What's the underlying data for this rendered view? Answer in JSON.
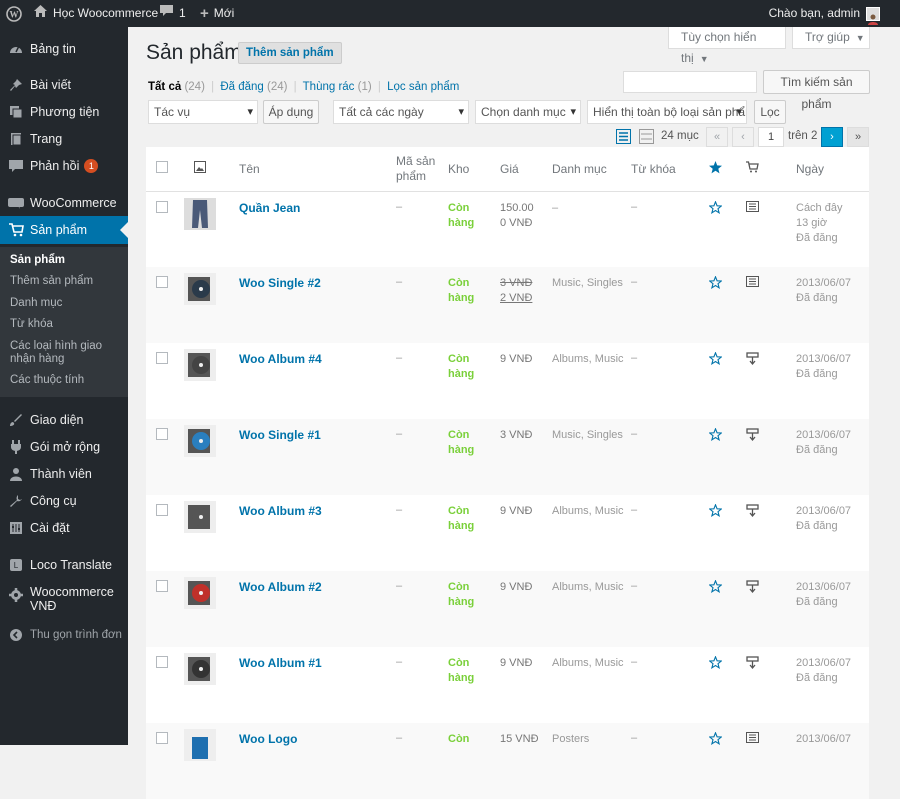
{
  "adminbar": {
    "site_name": "Học Woocommerce",
    "comments_count": "1",
    "new_label": "Mới",
    "greeting": "Chào bạn, admin"
  },
  "menu": {
    "items": [
      {
        "label": "Bảng tin",
        "icon": "dashboard-icon"
      },
      {
        "label": "Bài viết",
        "icon": "pin-icon"
      },
      {
        "label": "Phương tiện",
        "icon": "media-icon"
      },
      {
        "label": "Trang",
        "icon": "page-icon"
      },
      {
        "label": "Phản hồi",
        "icon": "comment-icon",
        "badge": "1"
      },
      {
        "label": "WooCommerce",
        "icon": "woocommerce-icon"
      },
      {
        "label": "Sản phẩm",
        "icon": "cart-icon"
      },
      {
        "label": "Giao diện",
        "icon": "brush-icon"
      },
      {
        "label": "Gói mở rộng",
        "icon": "plugin-icon"
      },
      {
        "label": "Thành viên",
        "icon": "user-icon"
      },
      {
        "label": "Công cụ",
        "icon": "wrench-icon"
      },
      {
        "label": "Cài đặt",
        "icon": "settings-icon"
      },
      {
        "label": "Loco Translate",
        "icon": "translate-icon"
      },
      {
        "label": "Woocommerce VNĐ",
        "icon": "gear-icon"
      },
      {
        "label": "Thu gọn trình đơn",
        "icon": "collapse-icon"
      }
    ],
    "submenu": [
      "Sản phẩm",
      "Thêm sản phẩm",
      "Danh mục",
      "Từ khóa",
      "Các loại hình giao nhận hàng",
      "Các thuộc tính"
    ]
  },
  "screen_options": "Tùy chọn hiển thị",
  "help": "Trợ giúp",
  "page_title": "Sản phẩm",
  "add_new": "Thêm sản phẩm",
  "filters": {
    "all": "Tất cả",
    "all_count": "(24)",
    "published": "Đã đăng",
    "published_count": "(24)",
    "trash": "Thùng rác",
    "trash_count": "(1)",
    "sort": "Lọc sản phẩm",
    "sep": "|"
  },
  "search": {
    "value": "",
    "button": "Tìm kiếm sản phẩm"
  },
  "bulk_action": "Tác vụ",
  "apply": "Áp dụng",
  "date_filter": "Tất cả các ngày",
  "category_filter": "Chọn danh mục",
  "type_filter": "Hiển thị toàn bộ loại sản phẩm",
  "filter_button": "Lọc",
  "pagination": {
    "items": "24 mục",
    "first": "«",
    "prev": "‹",
    "current": "1",
    "of": "trên 2",
    "next": "›",
    "last": "»"
  },
  "columns": {
    "name": "Tên",
    "sku": "Mã sản phẩm",
    "stock": "Kho",
    "price": "Giá",
    "categories": "Danh mục",
    "tags": "Từ khóa",
    "date": "Ngày"
  },
  "rows": [
    {
      "name": "Quần Jean",
      "sku": "–",
      "stock": "Còn hàng",
      "price": "150.00",
      "price2": "0 VNĐ",
      "cats": "–",
      "tags": "–",
      "date1": "Cách đây",
      "date2": "13 giờ",
      "date3": "Đã đăng"
    },
    {
      "name": "Woo Single #2",
      "sku": "–",
      "stock": "Còn hàng",
      "price": "3 VNĐ",
      "price2": "2 VNĐ",
      "cats": "Music, Singles",
      "tags": "–",
      "date1": "2013/06/07",
      "date2": "Đã đăng"
    },
    {
      "name": "Woo Album #4",
      "sku": "–",
      "stock": "Còn hàng",
      "price": "9 VNĐ",
      "cats": "Albums, Music",
      "tags": "–",
      "date1": "2013/06/07",
      "date2": "Đã đăng"
    },
    {
      "name": "Woo Single #1",
      "sku": "–",
      "stock": "Còn hàng",
      "price": "3 VNĐ",
      "cats": "Music, Singles",
      "tags": "–",
      "date1": "2013/06/07",
      "date2": "Đã đăng"
    },
    {
      "name": "Woo Album #3",
      "sku": "–",
      "stock": "Còn hàng",
      "price": "9 VNĐ",
      "cats": "Albums, Music",
      "tags": "–",
      "date1": "2013/06/07",
      "date2": "Đã đăng"
    },
    {
      "name": "Woo Album #2",
      "sku": "–",
      "stock": "Còn hàng",
      "price": "9 VNĐ",
      "cats": "Albums, Music",
      "tags": "–",
      "date1": "2013/06/07",
      "date2": "Đã đăng"
    },
    {
      "name": "Woo Album #1",
      "sku": "–",
      "stock": "Còn hàng",
      "price": "9 VNĐ",
      "cats": "Albums, Music",
      "tags": "–",
      "date1": "2013/06/07",
      "date2": "Đã đăng"
    },
    {
      "name": "Woo Logo",
      "sku": "–",
      "stock": "Còn",
      "price": "15 VNĐ",
      "cats": "Posters",
      "tags": "–",
      "date1": "2013/06/07"
    }
  ],
  "colors": {
    "accent": "#0073aa",
    "stock": "#7ad03a",
    "admin_bg": "#23282d"
  }
}
